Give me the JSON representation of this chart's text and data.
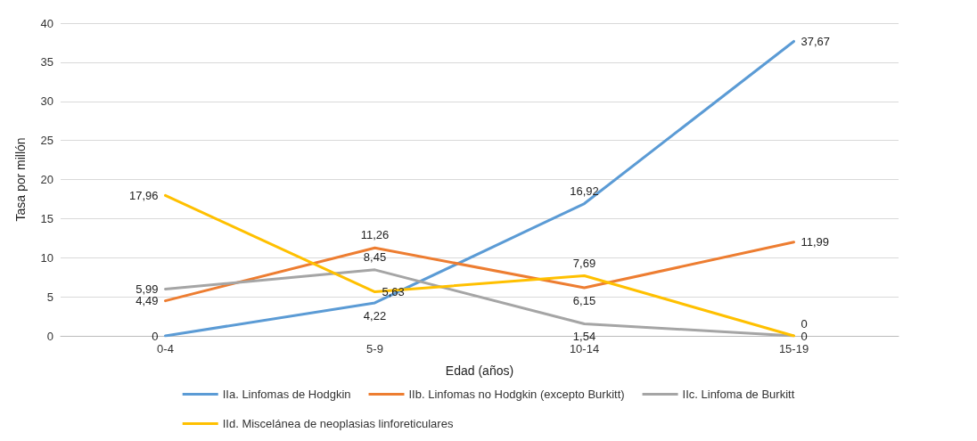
{
  "chart_data": {
    "type": "line",
    "xlabel": "Edad (años)",
    "ylabel": "Tasa por millón",
    "categories": [
      "0-4",
      "5-9",
      "10-14",
      "15-19"
    ],
    "series": [
      {
        "name": "IIa. Linfomas de Hodgkin",
        "color": "#5b9bd5",
        "values": [
          0,
          4.22,
          16.92,
          37.67
        ],
        "value_labels": [
          "0",
          "4,22",
          "16,92",
          "37,67"
        ]
      },
      {
        "name": "IIb. Linfomas no Hodgkin (excepto Burkitt)",
        "color": "#ed7d31",
        "values": [
          4.49,
          11.26,
          6.15,
          11.99
        ],
        "value_labels": [
          "4,49",
          "11,26",
          "6,15",
          "11,99"
        ]
      },
      {
        "name": "IIc. Linfoma de Burkitt",
        "color": "#a5a5a5",
        "values": [
          5.99,
          8.45,
          1.54,
          0
        ],
        "value_labels": [
          "5,99",
          "8,45",
          "1,54",
          "0"
        ]
      },
      {
        "name": "IId. Miscelánea de neoplasias linforeticulares",
        "color": "#ffc000",
        "values": [
          17.96,
          5.63,
          7.69,
          0
        ],
        "value_labels": [
          "17,96",
          "5,63",
          "7,69",
          "0"
        ]
      }
    ],
    "ylim": [
      0,
      40
    ],
    "yticks": [
      0,
      5,
      10,
      15,
      20,
      25,
      30,
      35,
      40
    ],
    "grid": "y",
    "legend": "bottom",
    "marker": "none",
    "line_style": "solid"
  }
}
